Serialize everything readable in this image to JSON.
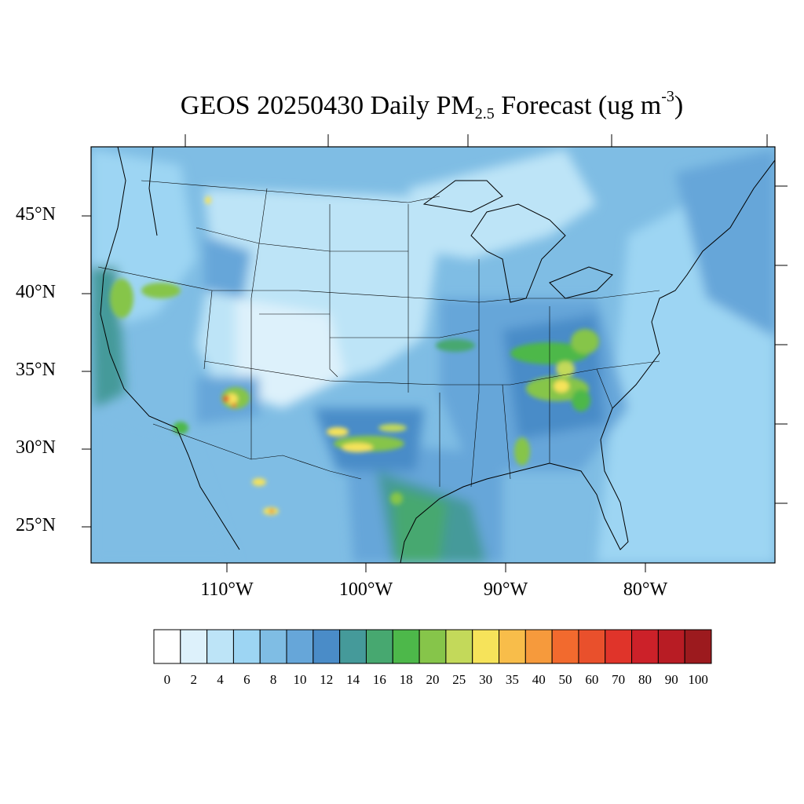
{
  "title": {
    "prefix": "GEOS 20250430 Daily PM",
    "subscript": "2.5",
    "middle": " Forecast (ug m",
    "superscript": "-3",
    "suffix": ")"
  },
  "map": {
    "lat_labels": [
      "45°N",
      "40°N",
      "35°N",
      "30°N",
      "25°N"
    ],
    "lon_labels": [
      "110°W",
      "100°W",
      "90°W",
      "80°W"
    ],
    "background_color": "#7fb8e0",
    "ocean_east_color": "#8cc4e6"
  },
  "colorbar": {
    "labels": [
      "0",
      "2",
      "4",
      "6",
      "8",
      "10",
      "12",
      "14",
      "16",
      "18",
      "20",
      "25",
      "30",
      "35",
      "40",
      "50",
      "60",
      "70",
      "80",
      "90",
      "100"
    ],
    "colors": [
      "#ffffff",
      "#ddf1fb",
      "#bde4f7",
      "#9dd5f3",
      "#7fbde4",
      "#66a6d9",
      "#4a8cc8",
      "#459a9a",
      "#47a870",
      "#4db84a",
      "#86c54a",
      "#c3d95a",
      "#f6e35a",
      "#f8bd4a",
      "#f69a3c",
      "#f26a2e",
      "#e9502c",
      "#e0342a",
      "#cc2129",
      "#b81c24",
      "#9c1a1e"
    ]
  }
}
